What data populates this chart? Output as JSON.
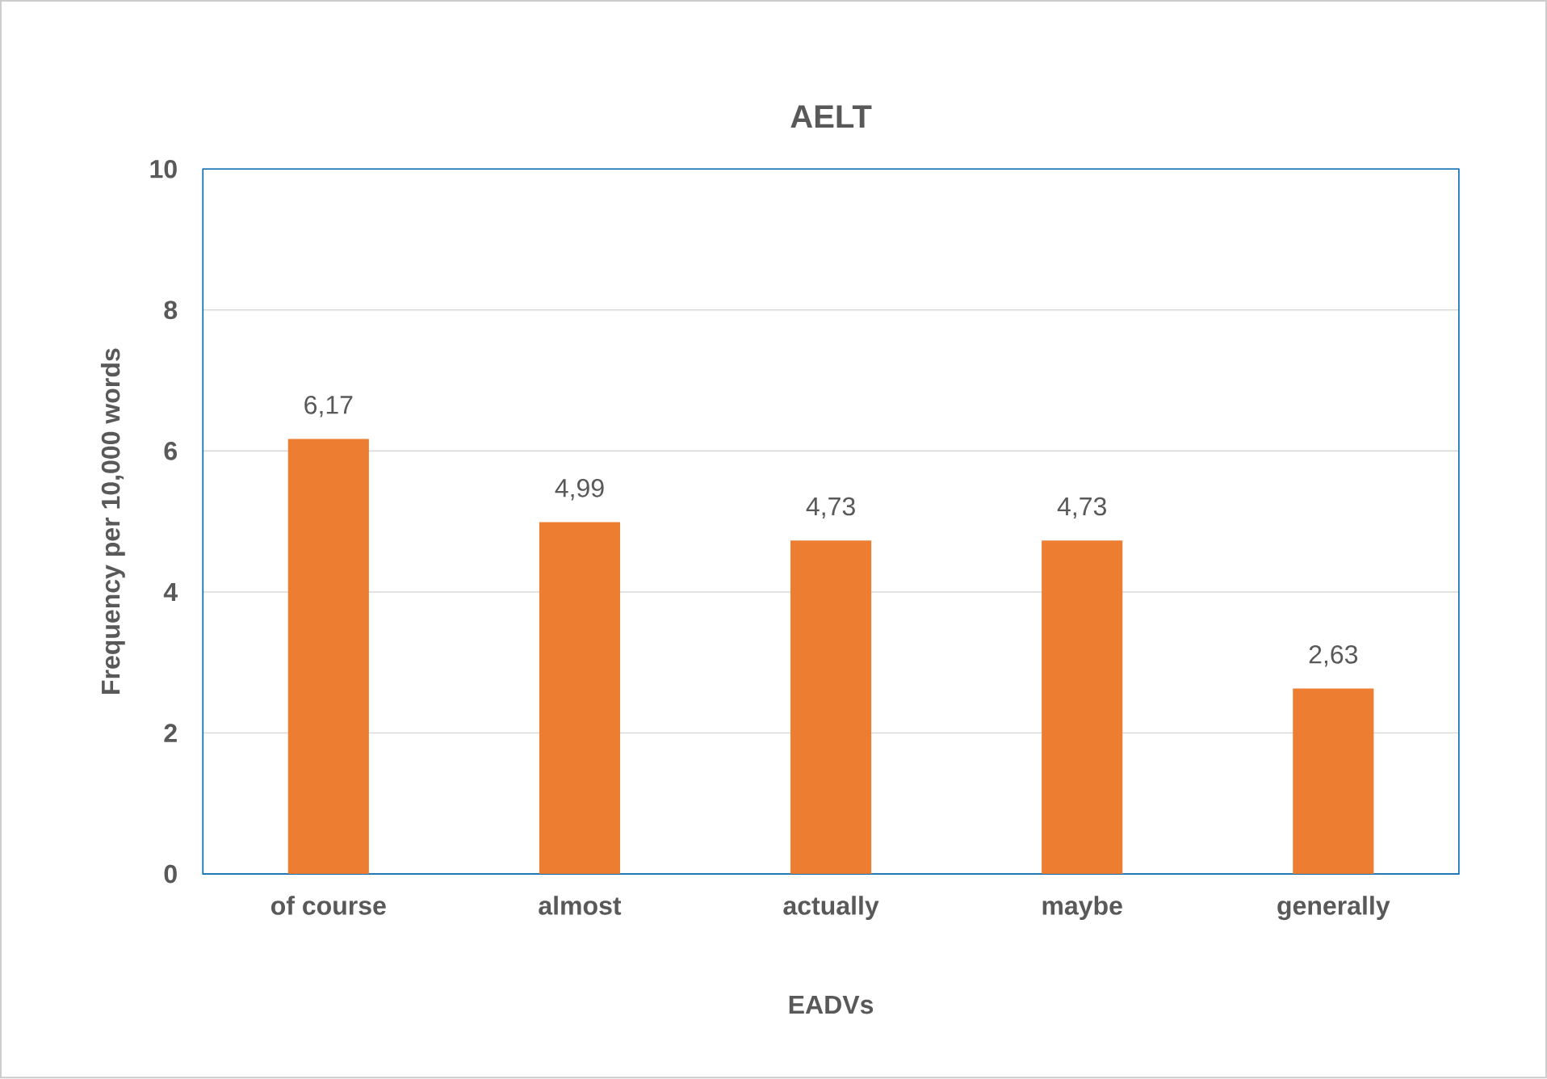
{
  "chart_data": {
    "type": "bar",
    "title": "AELT",
    "xlabel": "EADVs",
    "ylabel": "Frequency per 10,000 words",
    "categories": [
      "of course",
      "almost",
      "actually",
      "maybe",
      "generally"
    ],
    "values": [
      6.17,
      4.99,
      4.73,
      4.73,
      2.63
    ],
    "value_labels": [
      "6,17",
      "4,99",
      "4,73",
      "4,73",
      "2,63"
    ],
    "color": "#ed7d31",
    "ylim": [
      0,
      10
    ],
    "yticks": [
      0,
      2,
      4,
      6,
      8,
      10
    ],
    "grid": "y"
  }
}
